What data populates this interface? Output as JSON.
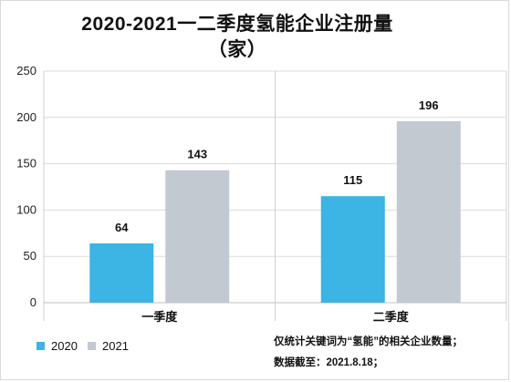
{
  "chart_data": {
    "type": "bar",
    "title_line1": "2020-2021一二季度氢能企业注册量",
    "title_line2": "（家）",
    "categories": [
      "一季度",
      "二季度"
    ],
    "series": [
      {
        "name": "2020",
        "values": [
          64,
          115
        ],
        "color": "#3cb4e4"
      },
      {
        "name": "2021",
        "values": [
          143,
          196
        ],
        "color": "#c3c9d1"
      }
    ],
    "yticks": [
      0,
      50,
      100,
      150,
      200,
      250
    ],
    "ylim": [
      0,
      250
    ],
    "grid": true,
    "legend_position": "bottom-left"
  },
  "notes": {
    "line1": "仅统计关键词为“氢能”的相关企业数量；",
    "line2": "数据截至：2021.8.18；"
  }
}
